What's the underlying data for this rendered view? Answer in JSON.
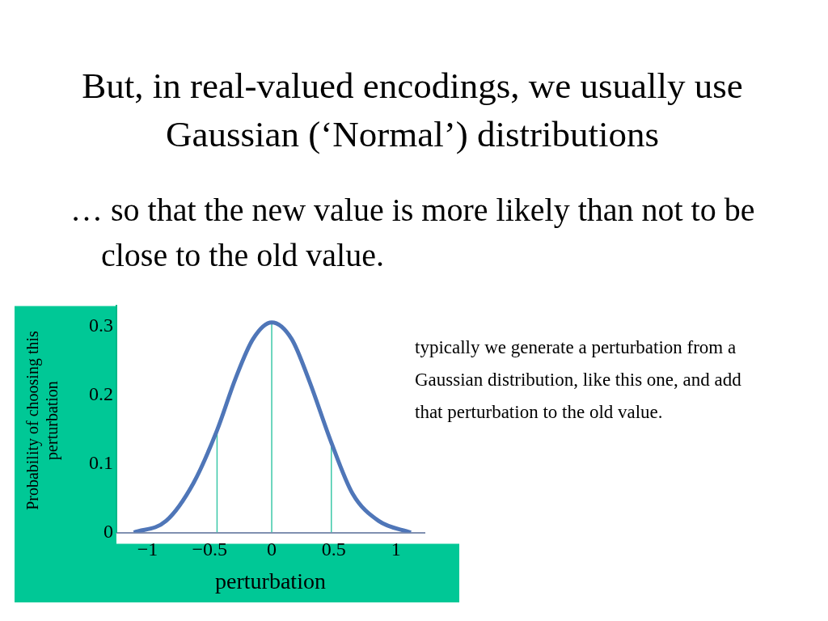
{
  "chart_data": {
    "type": "line",
    "title": "But, in real-valued encodings, we usually use Gaussian (‘Normal’) distributions",
    "subtitle": "… so that the new value is more likely than not to be close to the old value.",
    "xlabel": "perturbation",
    "ylabel": "Probability of choosing this perturbation",
    "annotations": [
      "typically we generate a perturbation from a Gaussian distribution, like this one, and add that perturbation to the old value."
    ],
    "xlim": [
      -1.25,
      1.23
    ],
    "xticks": [
      {
        "value": -1,
        "label": "−1"
      },
      {
        "value": -0.5,
        "label": "−0.5"
      },
      0,
      0.5,
      1
    ],
    "ylim": [
      0,
      0.33
    ],
    "yticks": [
      0,
      0.1,
      0.2,
      0.3
    ],
    "grid": false,
    "legend": false,
    "marker": "none",
    "line_style": "solid",
    "series": [
      {
        "color": "#4f76b8",
        "x": [
          -1.11,
          -0.85,
          -0.63,
          -0.44,
          -0.29,
          -0.15,
          0,
          0.16,
          0.3,
          0.48,
          0.65,
          0.86,
          1.12
        ],
        "values": [
          0,
          0.017,
          0.072,
          0.149,
          0.225,
          0.282,
          0.306,
          0.282,
          0.222,
          0.131,
          0.057,
          0.017,
          0
        ]
      },
      {
        "color": "#3cc8a8",
        "x": [
          -0.44,
          -0.44
        ],
        "values": [
          0,
          0.149
        ]
      },
      {
        "color": "#3cc8a8",
        "x": [
          0,
          0
        ],
        "values": [
          0,
          0.306
        ]
      },
      {
        "color": "#3cc8a8",
        "x": [
          0.48,
          0.48
        ],
        "values": [
          0,
          0.131
        ]
      }
    ]
  }
}
